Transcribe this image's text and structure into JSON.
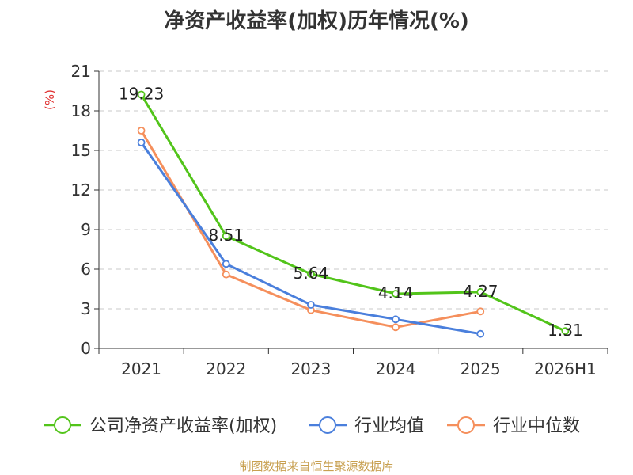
{
  "chart_data": {
    "type": "line",
    "title": "净资产收益率(加权)历年情况(%)",
    "ylabel": "(%)",
    "xlabel": "",
    "categories": [
      "2021",
      "2022",
      "2023",
      "2024",
      "2025",
      "2026H1"
    ],
    "ylim": [
      0,
      21
    ],
    "yticks": [
      "0",
      "3",
      "6",
      "9",
      "12",
      "15",
      "18",
      "21"
    ],
    "grid": true,
    "legend_position": "bottom",
    "series": [
      {
        "name": "公司净资产收益率(加权)",
        "color": "#52c41a",
        "values": [
          19.23,
          8.51,
          5.64,
          4.14,
          4.27,
          1.31
        ],
        "labels": [
          "19.23",
          "8.51",
          "5.64",
          "4.14",
          "4.27",
          "1.31"
        ]
      },
      {
        "name": "行业均值",
        "color": "#4a7fdc",
        "values": [
          15.6,
          6.4,
          3.3,
          2.2,
          1.1,
          null
        ]
      },
      {
        "name": "行业中位数",
        "color": "#f58f5c",
        "values": [
          16.5,
          5.6,
          2.9,
          1.6,
          2.8,
          null
        ]
      }
    ]
  },
  "source_text": "制图数据来自恒生聚源数据库"
}
